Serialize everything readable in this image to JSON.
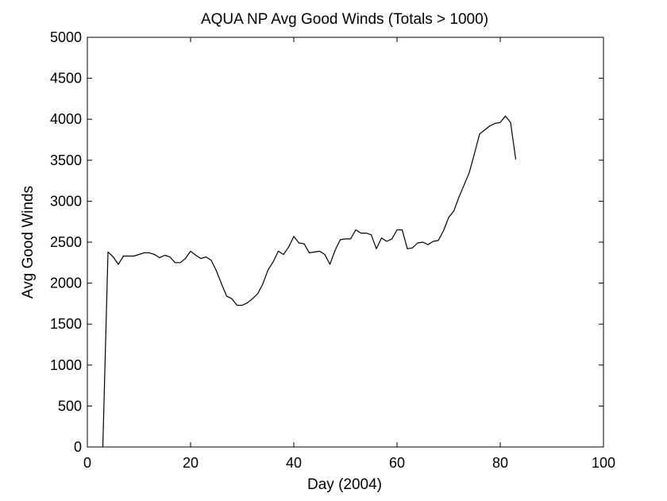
{
  "chart_data": {
    "type": "line",
    "title": "AQUA NP Avg Good Winds (Totals > 1000)",
    "xlabel": "Day (2004)",
    "ylabel": "Avg Good Winds",
    "xlim": [
      0,
      100
    ],
    "ylim": [
      0,
      5000
    ],
    "xticks": [
      "0",
      "20",
      "40",
      "60",
      "80",
      "100"
    ],
    "yticks": [
      "0",
      "500",
      "1000",
      "1500",
      "2000",
      "2500",
      "3000",
      "3500",
      "4000",
      "4500",
      "5000"
    ],
    "grid": false,
    "series": [
      {
        "color": "#000000",
        "x": [
          3,
          4,
          5,
          6,
          7,
          8,
          9,
          10,
          11,
          12,
          13,
          14,
          15,
          16,
          17,
          18,
          19,
          20,
          21,
          22,
          23,
          24,
          25,
          26,
          27,
          28,
          29,
          30,
          31,
          32,
          33,
          34,
          35,
          36,
          37,
          38,
          39,
          40,
          41,
          42,
          43,
          44,
          45,
          46,
          47,
          48,
          49,
          50,
          51,
          52,
          53,
          54,
          55,
          56,
          57,
          58,
          59,
          60,
          61,
          62,
          63,
          64,
          65,
          66,
          67,
          68,
          69,
          70,
          71,
          72,
          73,
          74,
          75,
          76,
          77,
          78,
          79,
          80,
          81,
          82,
          83
        ],
        "y": [
          0,
          2380,
          2320,
          2230,
          2330,
          2330,
          2330,
          2350,
          2370,
          2370,
          2350,
          2310,
          2340,
          2320,
          2250,
          2250,
          2300,
          2390,
          2340,
          2300,
          2320,
          2280,
          2150,
          1990,
          1840,
          1810,
          1730,
          1730,
          1760,
          1810,
          1870,
          1990,
          2160,
          2260,
          2390,
          2350,
          2440,
          2570,
          2490,
          2480,
          2370,
          2380,
          2390,
          2350,
          2230,
          2400,
          2530,
          2540,
          2540,
          2650,
          2610,
          2610,
          2590,
          2420,
          2550,
          2510,
          2540,
          2650,
          2650,
          2420,
          2430,
          2490,
          2500,
          2470,
          2510,
          2520,
          2640,
          2800,
          2880,
          3050,
          3200,
          3350,
          3580,
          3820,
          3870,
          3920,
          3950,
          3960,
          4040,
          3960,
          3510
        ]
      }
    ]
  }
}
